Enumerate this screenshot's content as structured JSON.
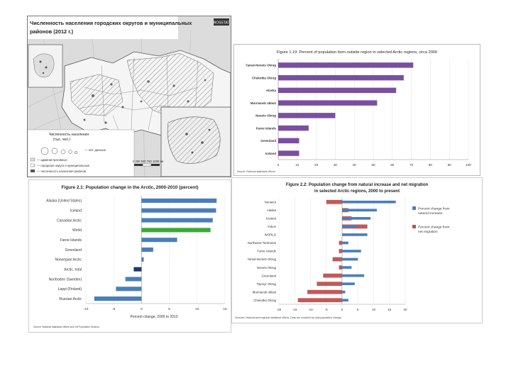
{
  "map": {
    "title_line1": "Численность населения городских округов и муниципальных",
    "title_line2": "районов (2012 г.)",
    "badge": "ROSSTAT",
    "legend_title_line1": "Численность населения",
    "legend_title_line2": "(тыс. чел.)",
    "legend_nodata": "— нет данных",
    "legend_items": [
      "— административные",
      "— городские округа и муниципальные",
      "— численность населения районов"
    ],
    "scale_label": "0   250  500   750  1000 км",
    "colors": {
      "sea": "#d9d9d9",
      "land": "#f6f6f6",
      "hatch": "#9a9a9a",
      "line": "#555555"
    }
  },
  "chart_data": [
    {
      "id": "fig-1-19",
      "type": "bar",
      "orientation": "horizontal",
      "title": "Figure 1.19: Percent of population born outside region in selected Arctic regions, circa 2000",
      "categories": [
        "Yamal-Nenets Okrug",
        "Chukotka Okrug",
        "Alaska",
        "Murmansk oblast",
        "Nenets Okrug",
        "Faroe Islands",
        "Greenland",
        "Iceland"
      ],
      "values": [
        71,
        66,
        62,
        52,
        30,
        16,
        11,
        11
      ],
      "xlim": [
        0,
        100
      ],
      "xticks": [
        0,
        10,
        20,
        30,
        40,
        50,
        60,
        70,
        80,
        90,
        100
      ],
      "color": "#7a4fa0",
      "source": "Source: National statistical offices."
    },
    {
      "id": "fig-2-1",
      "type": "bar",
      "orientation": "horizontal",
      "title": "Figure 2.1: Population change in the Arctic, 2000-2010 (percent)",
      "xlabel": "Percent change, 2000 to 2010",
      "categories": [
        "Alaska (United States)",
        "Iceland",
        "Canadian Arctic",
        "World",
        "Faroe Islands",
        "Greenland",
        "Norwegian Arctic",
        "Arctic, total",
        "Norrbotten (Sweden)",
        "Lappi (Finland)",
        "Russian Arctic"
      ],
      "values": [
        13.5,
        13.4,
        12.8,
        12.4,
        6.4,
        2.1,
        0.4,
        -1.4,
        -2.9,
        -4.6,
        -8.5
      ],
      "colors": [
        "#4a7ebb",
        "#4a7ebb",
        "#4a7ebb",
        "#3aaa35",
        "#4a7ebb",
        "#4a7ebb",
        "#4a7ebb",
        "#1f3864",
        "#4a7ebb",
        "#4a7ebb",
        "#4a7ebb"
      ],
      "xlim": [
        -10,
        15
      ],
      "xticks": [
        -10,
        -5,
        0,
        5,
        10,
        15
      ],
      "source": "Source: National statistical offices and UN Population Division."
    },
    {
      "id": "fig-2-2",
      "type": "bar",
      "orientation": "horizontal",
      "title_line1": "Figure 2.2: Population change from natural increase and net migration",
      "title_line2": "in selected Arctic regions, 2000 to present",
      "categories": [
        "Nunavut",
        "Alaska",
        "Iceland",
        "Yukon",
        "WORLD",
        "Northwest Territories",
        "Faroe Islands",
        "Yamal-Nenets Okrug",
        "Nenets Okrug",
        "Greenland",
        "Taymyr Okrug",
        "Murmansk oblast",
        "Chukotka Okrug"
      ],
      "series": [
        {
          "name": "Percent change from natural increase",
          "color": "#4a7ebb",
          "values": [
            17,
            11,
            9,
            5,
            8,
            2,
            6,
            5,
            3,
            7,
            4,
            1,
            2
          ]
        },
        {
          "name": "Percent change from net migration",
          "color": "#c0504d",
          "values": [
            -5,
            2,
            3,
            8,
            0,
            -1,
            -1,
            -3,
            -1,
            -6,
            -8,
            -11,
            -14
          ]
        }
      ],
      "xlim": [
        -20,
        20
      ],
      "xticks": [
        -20,
        -15,
        -10,
        -5,
        0,
        5,
        10,
        15,
        20
      ],
      "source": "Sources: National and regional statistical offices. Data are modeled by total population change."
    }
  ]
}
